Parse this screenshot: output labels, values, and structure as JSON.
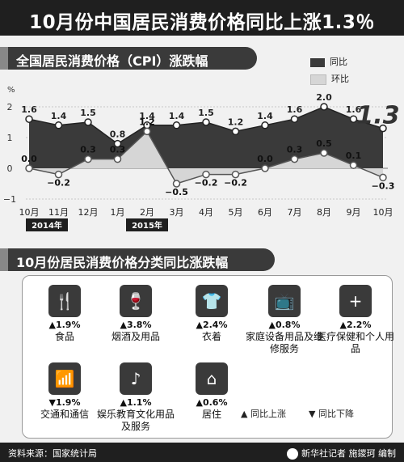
{
  "title": "10月份中国居民消费价格同比上涨1.3％",
  "section1_title": "全国居民消费价格（CPI）涨跌幅",
  "section2_title": "10月份居民消费价格分类同比涨跌幅",
  "legend": {
    "yoy": "同比",
    "mom": "环比"
  },
  "highlight_value": "1.3",
  "year_labels": [
    "2014年",
    "2015年"
  ],
  "chart_data": {
    "type": "line",
    "title": "全国居民消费价格（CPI）涨跌幅",
    "ylabel": "%",
    "ylim": [
      -1,
      2
    ],
    "yticks": [
      "2",
      "1",
      "0",
      "−1"
    ],
    "categories": [
      "10月",
      "11月",
      "12月",
      "1月",
      "2月",
      "3月",
      "4月",
      "5月",
      "6月",
      "7月",
      "8月",
      "9月",
      "10月"
    ],
    "series": [
      {
        "name": "同比",
        "values": [
          1.6,
          1.4,
          1.5,
          0.8,
          1.4,
          1.4,
          1.5,
          1.2,
          1.4,
          1.6,
          2.0,
          1.6,
          1.3
        ],
        "labels": [
          "1.6",
          "1.4",
          "1.5",
          "0.8",
          "1.4",
          "1.4",
          "1.5",
          "1.2",
          "1.4",
          "1.6",
          "2.0",
          "1.6",
          "1.3"
        ]
      },
      {
        "name": "环比",
        "values": [
          0.0,
          -0.2,
          0.3,
          0.3,
          1.2,
          -0.5,
          -0.2,
          -0.2,
          0.0,
          0.3,
          0.5,
          0.1,
          -0.3
        ],
        "labels": [
          "0.0",
          "−0.2",
          "0.3",
          "0.3",
          "1.2",
          "−0.5",
          "−0.2",
          "−0.2",
          "0.0",
          "0.3",
          "0.5",
          "0.1",
          "−0.3"
        ]
      }
    ]
  },
  "categories": [
    {
      "name": "食品",
      "change": "▲1.9%",
      "icon": "utensils-icon"
    },
    {
      "name": "烟酒及用品",
      "change": "▲3.8%",
      "icon": "wine-icon"
    },
    {
      "name": "衣着",
      "change": "▲2.4%",
      "icon": "shirt-icon"
    },
    {
      "name": "家庭设备用品及维修服务",
      "change": "▲0.8%",
      "icon": "tv-icon"
    },
    {
      "name": "医疗保健和个人用品",
      "change": "▲2.2%",
      "icon": "medical-kit-icon"
    },
    {
      "name": "交通和通信",
      "change": "▼1.9%",
      "icon": "signal-tower-icon"
    },
    {
      "name": "娱乐教育文化用品及服务",
      "change": "▲1.1%",
      "icon": "music-icon"
    },
    {
      "name": "居住",
      "change": "▲0.6%",
      "icon": "house-icon"
    }
  ],
  "key": {
    "up": "▲ 同比上涨",
    "down": "▼ 同比下降"
  },
  "footer": {
    "source": "资料来源：国家统计局",
    "credit": "新华社记者 施鑁珂 编制"
  },
  "colors": {
    "dark": "#3a3a3a",
    "light": "#d9d9d9",
    "bg": "#f1f1f1"
  }
}
